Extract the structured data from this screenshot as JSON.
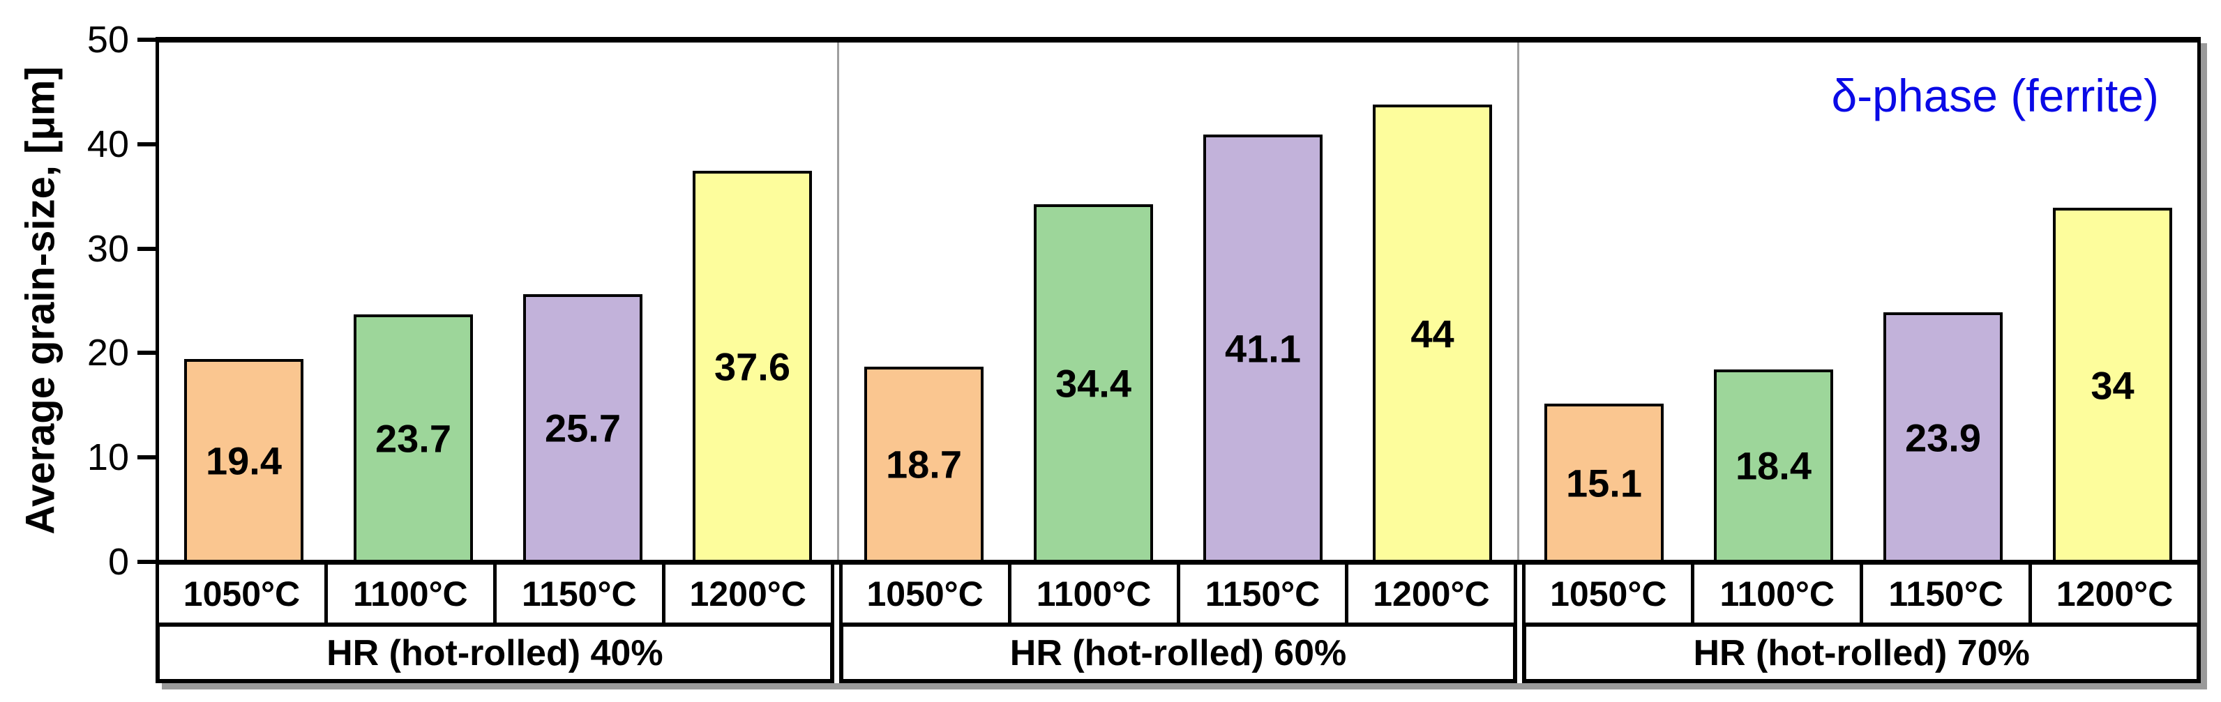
{
  "chart_data": {
    "type": "bar",
    "title": "",
    "ylabel": "Average grain-size, [μm]",
    "xlabel": "",
    "ylim": [
      0,
      50
    ],
    "yticks": [
      0,
      10,
      20,
      30,
      40,
      50
    ],
    "grid": "off",
    "legend": "none",
    "annotation": "δ-phase (ferrite)",
    "annotation_color": "#0a0ae6",
    "categories": [
      "1050°C",
      "1100°C",
      "1150°C",
      "1200°C"
    ],
    "bar_colors": [
      "#FAC690",
      "#9DD69A",
      "#C2B2DA",
      "#FDFD9C"
    ],
    "bar_border_color": "#000000",
    "groups": [
      {
        "label": "HR (hot-rolled) 40%",
        "values": [
          19.4,
          23.7,
          25.7,
          37.6
        ]
      },
      {
        "label": "HR (hot-rolled) 60%",
        "values": [
          18.7,
          34.4,
          41.1,
          44
        ]
      },
      {
        "label": "HR (hot-rolled) 70%",
        "values": [
          15.1,
          18.4,
          23.9,
          34
        ]
      }
    ]
  }
}
